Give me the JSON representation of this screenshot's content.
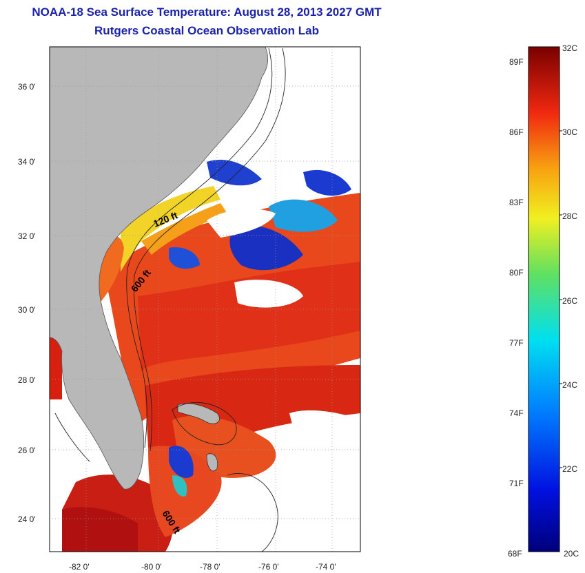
{
  "header": {
    "title": "NOAA-18 Sea Surface Temperature:  August 28, 2013 2027 GMT",
    "subtitle": "Rutgers Coastal Ocean Observation Lab"
  },
  "map": {
    "lat_labels": [
      "36 0'",
      "34 0'",
      "32 0'",
      "30 0'",
      "28 0'",
      "26 0'",
      "24 0'"
    ],
    "lon_labels": [
      "-82 0'",
      "-80 0'",
      "-78 0'",
      "-76 0'",
      "-74 0'"
    ],
    "depth_labels": [
      "120 ft",
      "600 ft",
      "600 ft"
    ],
    "colors": {
      "land": "#b8b8b8",
      "cloud": "#ffffff",
      "warm": "#e8401a",
      "hot": "#b81010",
      "cool": "#1a3ad0",
      "mild": "#f0d020"
    }
  },
  "colorbar": {
    "fahrenheit": [
      "89F",
      "86F",
      "83F",
      "80F",
      "77F",
      "74F",
      "71F",
      "68F"
    ],
    "celsius": [
      "32C",
      "30C",
      "28C",
      "26C",
      "24C",
      "22C",
      "20C"
    ],
    "range_c": [
      20,
      32
    ]
  }
}
